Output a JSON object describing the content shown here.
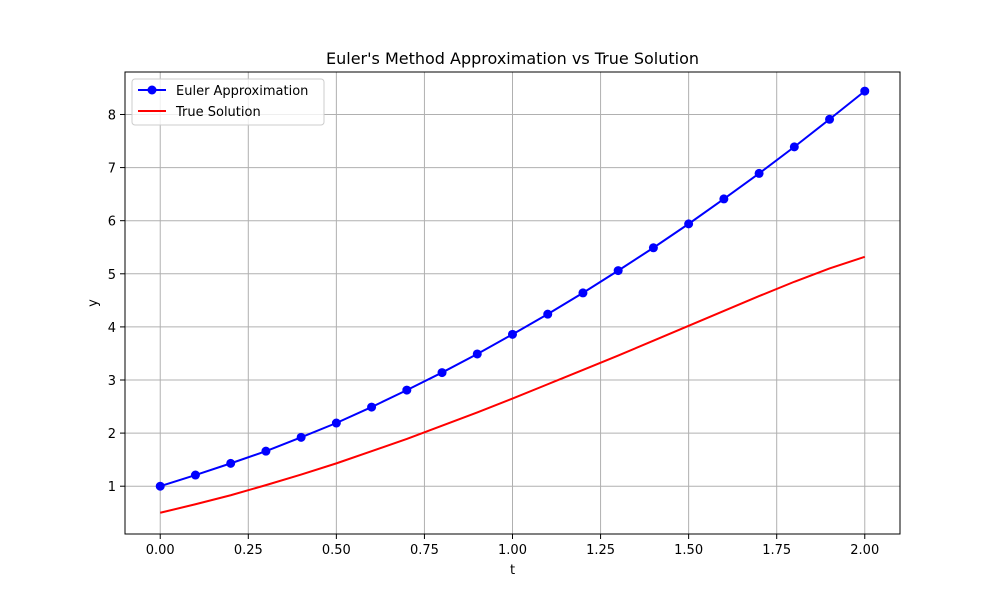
{
  "chart_data": {
    "type": "line",
    "title": "Euler's Method Approximation vs True Solution",
    "xlabel": "t",
    "ylabel": "y",
    "xlim": [
      -0.1,
      2.1
    ],
    "ylim": [
      0.1,
      8.8
    ],
    "x_ticks": [
      0.0,
      0.25,
      0.5,
      0.75,
      1.0,
      1.25,
      1.5,
      1.75,
      2.0
    ],
    "x_tick_labels": [
      "0.00",
      "0.25",
      "0.50",
      "0.75",
      "1.00",
      "1.25",
      "1.50",
      "1.75",
      "2.00"
    ],
    "y_ticks": [
      1,
      2,
      3,
      4,
      5,
      6,
      7,
      8
    ],
    "y_tick_labels": [
      "1",
      "2",
      "3",
      "4",
      "5",
      "6",
      "7",
      "8"
    ],
    "grid": true,
    "legend_position": "top-left",
    "series": [
      {
        "name": "Euler Approximation",
        "color": "#0000ff",
        "marker": "circle",
        "x": [
          0.0,
          0.1,
          0.2,
          0.3,
          0.4,
          0.5,
          0.6,
          0.7,
          0.8,
          0.9,
          1.0,
          1.1,
          1.2,
          1.3,
          1.4,
          1.5,
          1.6,
          1.7,
          1.8,
          1.9,
          2.0
        ],
        "y": [
          1.0,
          1.21,
          1.43,
          1.66,
          1.92,
          2.19,
          2.49,
          2.81,
          3.14,
          3.49,
          3.86,
          4.24,
          4.64,
          5.06,
          5.49,
          5.94,
          6.41,
          6.89,
          7.39,
          7.91,
          8.44
        ]
      },
      {
        "name": "True Solution",
        "color": "#ff0000",
        "marker": "none",
        "x": [
          0.0,
          0.1,
          0.2,
          0.3,
          0.4,
          0.5,
          0.6,
          0.7,
          0.8,
          0.9,
          1.0,
          1.1,
          1.2,
          1.3,
          1.4,
          1.5,
          1.6,
          1.7,
          1.8,
          1.9,
          2.0
        ],
        "y": [
          0.5,
          0.66,
          0.83,
          1.02,
          1.22,
          1.43,
          1.66,
          1.89,
          2.14,
          2.39,
          2.65,
          2.92,
          3.19,
          3.46,
          3.74,
          4.02,
          4.3,
          4.58,
          4.85,
          5.1,
          5.32
        ]
      }
    ]
  }
}
